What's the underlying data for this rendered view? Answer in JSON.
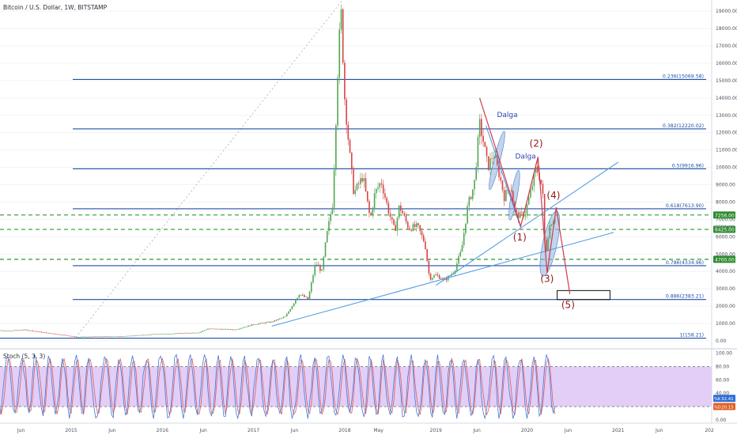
{
  "header": {
    "title": "Bitcoin / U.S. Dollar, 1W, BITSTAMP"
  },
  "chart_data": {
    "type": "candlestick",
    "price_axis": {
      "min": 0,
      "max": 19675.7,
      "ticks": [
        0,
        1000,
        2000,
        3000,
        4000,
        5000,
        6000,
        7000,
        8000,
        9000,
        10000,
        11000,
        12000,
        13000,
        14000,
        15000,
        16000,
        17000,
        18000,
        19000
      ],
      "tick_labels": [
        "0.00",
        "1000.00",
        "2000.00",
        "3000.00",
        "4000.00",
        "5000.00",
        "6000.00",
        "7000.00",
        "8000.00",
        "9000.00",
        "10000.00",
        "11000.00",
        "12000.00",
        "13000.00",
        "14000.00",
        "15000.00",
        "16000.00",
        "17000.00",
        "18000.00",
        "19000.00"
      ]
    },
    "time_axis": {
      "labels": [
        {
          "t": 2014.45,
          "text": "Jun"
        },
        {
          "t": 2015.0,
          "text": "2015"
        },
        {
          "t": 2015.45,
          "text": "Jun"
        },
        {
          "t": 2016.0,
          "text": "2016"
        },
        {
          "t": 2016.45,
          "text": "Jun"
        },
        {
          "t": 2017.0,
          "text": "2017"
        },
        {
          "t": 2017.45,
          "text": "Jun"
        },
        {
          "t": 2018.0,
          "text": "2018"
        },
        {
          "t": 2018.37,
          "text": "May"
        },
        {
          "t": 2019.0,
          "text": "2019"
        },
        {
          "t": 2019.45,
          "text": "Jun"
        },
        {
          "t": 2020.0,
          "text": "2020"
        },
        {
          "t": 2020.45,
          "text": "Jun"
        },
        {
          "t": 2021.0,
          "text": "2021"
        },
        {
          "t": 2021.45,
          "text": "Jun"
        },
        {
          "t": 2022.0,
          "text": "202"
        }
      ]
    },
    "price_path": [
      [
        2014.0,
        620
      ],
      [
        2014.3,
        580
      ],
      [
        2014.5,
        640
      ],
      [
        2014.7,
        480
      ],
      [
        2014.9,
        350
      ],
      [
        2015.05,
        230
      ],
      [
        2015.3,
        250
      ],
      [
        2015.6,
        270
      ],
      [
        2015.9,
        380
      ],
      [
        2016.1,
        420
      ],
      [
        2016.4,
        480
      ],
      [
        2016.5,
        700
      ],
      [
        2016.8,
        650
      ],
      [
        2017.0,
        950
      ],
      [
        2017.2,
        1100
      ],
      [
        2017.35,
        1400
      ],
      [
        2017.5,
        2700
      ],
      [
        2017.6,
        2400
      ],
      [
        2017.68,
        4500
      ],
      [
        2017.75,
        4000
      ],
      [
        2017.8,
        6000
      ],
      [
        2017.87,
        8000
      ],
      [
        2017.93,
        16500
      ],
      [
        2017.96,
        19000
      ],
      [
        2018.0,
        14000
      ],
      [
        2018.05,
        11000
      ],
      [
        2018.1,
        8500
      ],
      [
        2018.2,
        9500
      ],
      [
        2018.28,
        7000
      ],
      [
        2018.33,
        8500
      ],
      [
        2018.4,
        9200
      ],
      [
        2018.48,
        7500
      ],
      [
        2018.55,
        6300
      ],
      [
        2018.6,
        7800
      ],
      [
        2018.7,
        6500
      ],
      [
        2018.8,
        6600
      ],
      [
        2018.88,
        5600
      ],
      [
        2018.93,
        3600
      ],
      [
        2019.0,
        3800
      ],
      [
        2019.1,
        3500
      ],
      [
        2019.2,
        4000
      ],
      [
        2019.28,
        5200
      ],
      [
        2019.35,
        7800
      ],
      [
        2019.42,
        9000
      ],
      [
        2019.48,
        12500
      ],
      [
        2019.52,
        11500
      ],
      [
        2019.57,
        10000
      ],
      [
        2019.63,
        10800
      ],
      [
        2019.7,
        9500
      ],
      [
        2019.75,
        8300
      ],
      [
        2019.82,
        9000
      ],
      [
        2019.87,
        7300
      ],
      [
        2019.93,
        7200
      ],
      [
        2019.98,
        7400
      ],
      [
        2020.05,
        8800
      ],
      [
        2020.1,
        10000
      ],
      [
        2020.13,
        9600
      ],
      [
        2020.17,
        8700
      ],
      [
        2020.2,
        4800
      ],
      [
        2020.24,
        6500
      ],
      [
        2020.28,
        7000
      ],
      [
        2020.32,
        7100
      ]
    ],
    "fibonacci_levels": [
      {
        "ratio": "1",
        "value": 158.21,
        "label": "1(158.21)"
      },
      {
        "ratio": "0.886",
        "value": 2383.21,
        "label": "0.886(2383.21)"
      },
      {
        "ratio": "0.786",
        "value": 4334.96,
        "label": "0.786(4334.96)"
      },
      {
        "ratio": "0.618",
        "value": 7613.9,
        "label": "0.618(7613.90)"
      },
      {
        "ratio": "0.5",
        "value": 9916.96,
        "label": "0.5(9916.96)"
      },
      {
        "ratio": "0.382",
        "value": 12220.02,
        "label": "0.382(12220.02)"
      },
      {
        "ratio": "0.236",
        "value": 15069.58,
        "label": "0.236(15069.58)"
      },
      {
        "ratio": "0",
        "value": 19675.7,
        "label": "0(19675.70)"
      }
    ],
    "horizontal_levels": [
      {
        "value": 7256,
        "label": "7256.00"
      },
      {
        "value": 6425,
        "label": "6425.00"
      },
      {
        "value": 4700,
        "label": "4700.00"
      }
    ],
    "current_price": {
      "value": 6589.42,
      "label": "6589.42"
    },
    "wave_labels": [
      {
        "text": "(1)",
        "t": 2019.92,
        "price": 5800
      },
      {
        "text": "(2)",
        "t": 2020.1,
        "price": 11200
      },
      {
        "text": "(3)",
        "t": 2020.22,
        "price": 3400
      },
      {
        "text": "(4)",
        "t": 2020.29,
        "price": 8200
      },
      {
        "text": "(5)",
        "t": 2020.45,
        "price": 1900
      }
    ],
    "annotations": [
      {
        "text": "Dalga",
        "t": 2019.67,
        "price": 12900
      },
      {
        "text": "Dalga",
        "t": 2019.87,
        "price": 10500
      }
    ],
    "indicator": {
      "name": "Stoch (5, 3, 3)",
      "range": [
        0,
        100
      ],
      "levels": [
        20,
        80
      ],
      "tick_labels": [
        "0.00",
        "20.00",
        "40.00",
        "60.00",
        "80.00",
        "100.00"
      ],
      "tick_values": [
        0,
        20,
        40,
        60,
        80,
        100
      ],
      "k_badge": {
        "name": "%K",
        "value": 32.41,
        "label": "32.41"
      },
      "d_badge": {
        "name": "%D",
        "value": 20.15,
        "label": "20.15"
      }
    }
  },
  "colors": {
    "up_candle": "#53a653",
    "down_candle": "#d64545",
    "fib_line": "#1f4fa8",
    "fib_label": "#1f4fa8",
    "dashed_level": "#2e9a2e",
    "trendline": "#4a98e0",
    "wave_line": "#d23b4b",
    "wave_label": "#8b1a1a",
    "ellipse_fill": "#8fb2e0",
    "stoch_band": "#e2cef6",
    "stoch_k": "#3d7bd9",
    "stoch_d": "#e35a5a",
    "level_badge": "#2e8b2e"
  }
}
